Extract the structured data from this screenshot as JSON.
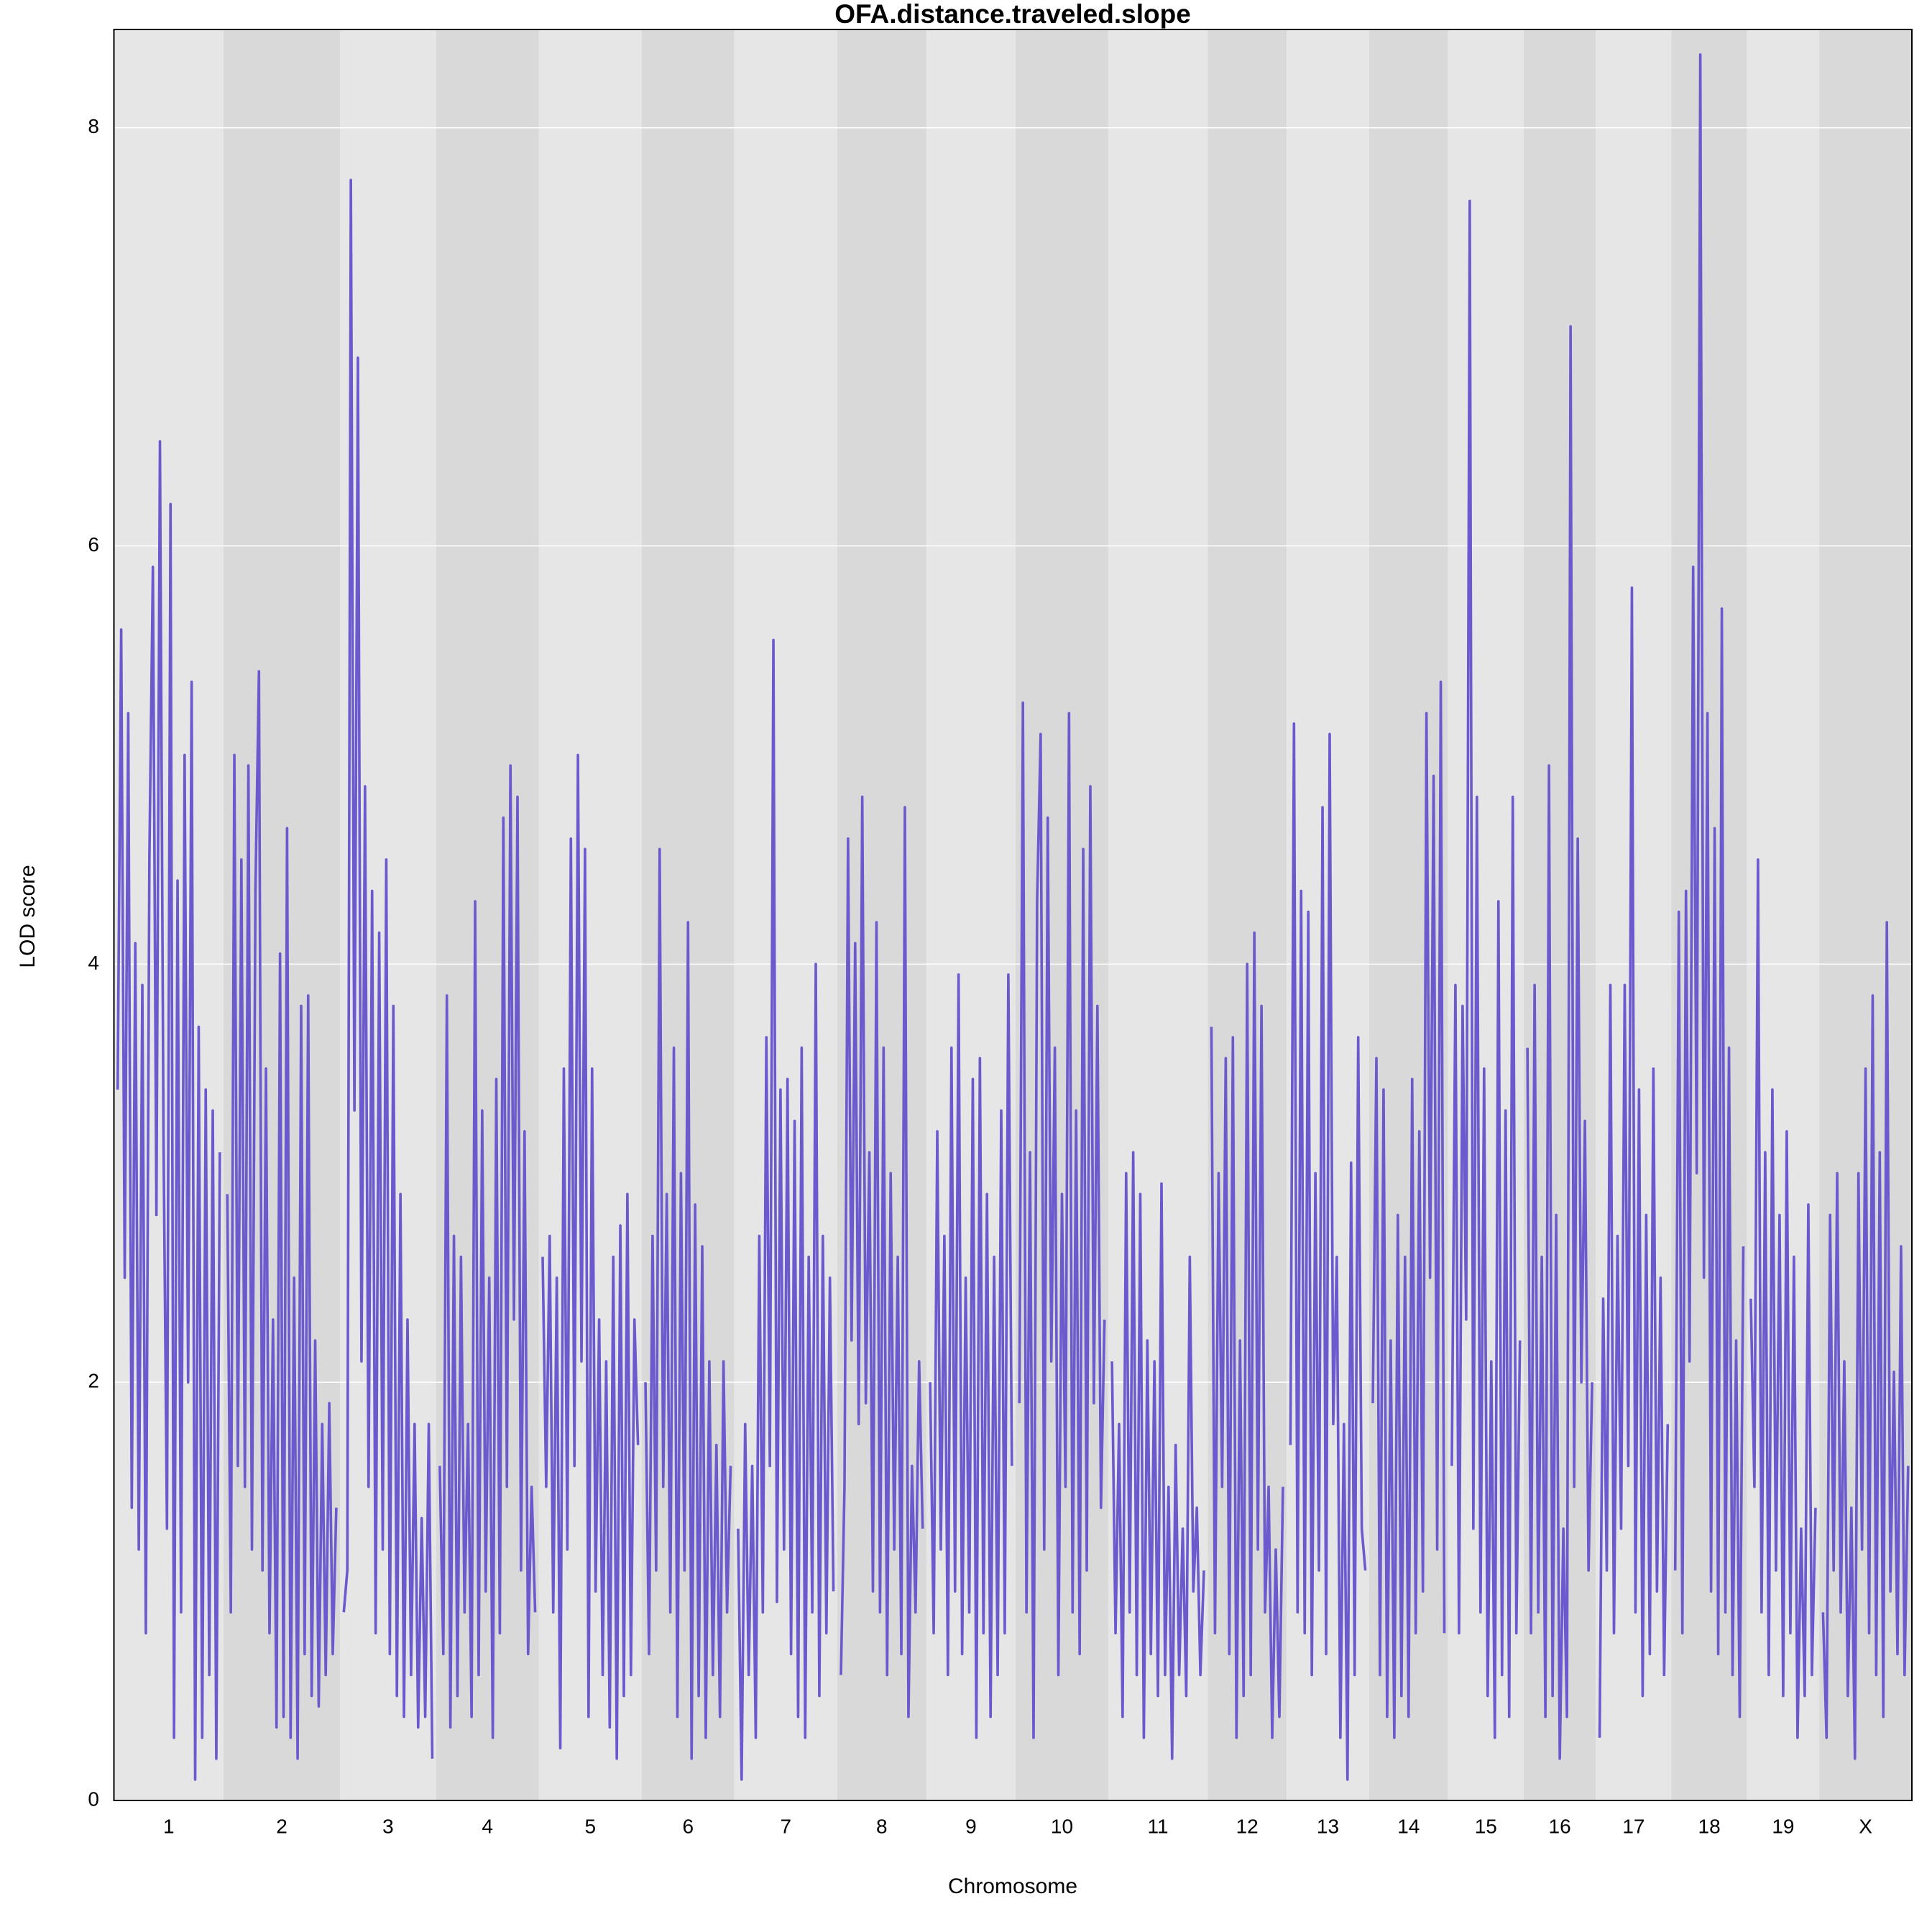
{
  "chart_data": {
    "type": "line",
    "title": "OFA.distance.traveled.slope",
    "x_label": "Chromosome",
    "y_label": "LOD score",
    "color": "#6a5acd",
    "band_colors": [
      "#e6e6e6",
      "#d9d9d9"
    ],
    "grid": true,
    "ylim": [
      0,
      8.47
    ],
    "yticks": [
      0,
      2,
      4,
      6,
      8
    ],
    "series": [
      {
        "name": "1",
        "values": [
          3.4,
          5.6,
          2.5,
          5.2,
          1.4,
          4.1,
          1.2,
          3.9,
          0.8,
          4.5,
          5.9,
          2.8,
          6.5,
          3.2,
          1.3,
          6.2,
          0.3,
          4.4,
          0.9,
          5.0,
          2.0,
          5.35,
          0.1,
          3.7,
          0.3,
          3.4,
          0.6,
          3.3,
          0.2,
          3.1
        ]
      },
      {
        "name": "2",
        "values": [
          2.9,
          0.9,
          5.0,
          1.6,
          4.5,
          1.5,
          4.95,
          1.2,
          4.35,
          5.4,
          1.1,
          3.5,
          0.8,
          2.3,
          0.35,
          4.05,
          0.4,
          4.65,
          0.3,
          2.5,
          0.2,
          3.8,
          0.7,
          3.85,
          0.5,
          2.2,
          0.45,
          1.8,
          0.6,
          1.9,
          0.7,
          1.4
        ]
      },
      {
        "name": "3",
        "values": [
          0.9,
          1.1,
          7.75,
          3.3,
          6.9,
          2.1,
          4.85,
          1.5,
          4.35,
          0.8,
          4.15,
          1.2,
          4.5,
          0.7,
          3.8,
          0.5,
          2.9,
          0.4,
          2.3,
          0.6,
          1.8,
          0.35,
          1.35,
          0.4,
          1.8,
          0.2
        ]
      },
      {
        "name": "4",
        "values": [
          1.6,
          0.7,
          3.85,
          0.35,
          2.7,
          0.5,
          2.6,
          0.9,
          1.8,
          0.4,
          4.3,
          0.6,
          3.3,
          1.0,
          2.5,
          0.3,
          3.45,
          0.8,
          4.7,
          1.5,
          4.95,
          2.3,
          4.8,
          1.1,
          3.2,
          0.7,
          1.5,
          0.9
        ]
      },
      {
        "name": "5",
        "values": [
          2.6,
          1.5,
          2.7,
          0.9,
          2.5,
          0.25,
          3.5,
          1.2,
          4.6,
          1.6,
          5.0,
          2.1,
          4.55,
          0.4,
          3.5,
          1.0,
          2.3,
          0.6,
          2.1,
          0.35,
          2.6,
          0.2,
          2.75,
          0.5,
          2.9,
          0.6,
          2.3,
          1.7
        ]
      },
      {
        "name": "6",
        "values": [
          2.0,
          0.7,
          2.7,
          1.1,
          4.55,
          1.5,
          2.9,
          0.9,
          3.6,
          0.4,
          3.0,
          1.1,
          4.2,
          0.2,
          2.85,
          0.5,
          2.65,
          0.3,
          2.1,
          0.6,
          1.7,
          0.4,
          2.1,
          0.9,
          1.6
        ]
      },
      {
        "name": "7",
        "values": [
          1.3,
          0.1,
          1.8,
          0.6,
          1.6,
          0.3,
          2.7,
          0.9,
          3.65,
          1.6,
          5.55,
          0.95,
          3.4,
          1.2,
          3.45,
          0.7,
          3.25,
          0.4,
          3.6,
          0.3,
          2.6,
          0.9,
          4.0,
          0.5,
          2.7,
          0.8,
          2.5,
          1.0
        ]
      },
      {
        "name": "8",
        "values": [
          0.6,
          1.5,
          4.6,
          2.2,
          4.1,
          1.8,
          4.8,
          1.9,
          3.1,
          1.0,
          4.2,
          0.9,
          3.6,
          0.6,
          3.0,
          1.2,
          2.6,
          0.7,
          4.75,
          0.4,
          1.6,
          0.9,
          2.1,
          1.3
        ]
      },
      {
        "name": "9",
        "values": [
          2.0,
          0.8,
          3.2,
          1.2,
          2.7,
          0.6,
          3.6,
          1.0,
          3.95,
          0.7,
          2.5,
          0.9,
          3.45,
          0.3,
          3.55,
          0.8,
          2.9,
          0.4,
          2.6,
          0.6,
          3.3,
          0.8,
          3.95,
          1.6
        ]
      },
      {
        "name": "10",
        "values": [
          1.9,
          5.25,
          0.9,
          3.1,
          0.3,
          4.3,
          5.1,
          1.2,
          4.7,
          2.1,
          3.6,
          0.6,
          2.9,
          1.5,
          5.2,
          0.9,
          3.3,
          0.7,
          4.55,
          1.1,
          4.85,
          1.9,
          3.8,
          1.4,
          2.3
        ]
      },
      {
        "name": "11",
        "values": [
          2.1,
          0.8,
          1.8,
          0.4,
          3.0,
          0.9,
          3.1,
          0.6,
          2.9,
          0.3,
          2.2,
          0.7,
          2.1,
          0.5,
          2.95,
          0.6,
          1.5,
          0.2,
          1.7,
          0.6,
          1.3,
          0.5,
          2.6,
          1.0,
          1.4,
          0.6,
          1.1
        ]
      },
      {
        "name": "12",
        "values": [
          3.7,
          0.8,
          3.0,
          1.5,
          3.55,
          0.7,
          3.65,
          0.3,
          2.2,
          0.5,
          4.0,
          0.6,
          4.15,
          1.2,
          3.8,
          0.9,
          1.5,
          0.3,
          1.2,
          0.4,
          1.5
        ]
      },
      {
        "name": "13",
        "values": [
          1.7,
          5.15,
          0.9,
          4.35,
          0.8,
          4.25,
          0.6,
          3.0,
          1.1,
          4.75,
          0.7,
          5.1,
          1.8,
          2.6,
          0.3,
          1.8,
          0.1,
          3.05,
          0.6,
          3.65,
          1.3,
          1.1
        ]
      },
      {
        "name": "14",
        "values": [
          1.9,
          3.55,
          0.6,
          3.4,
          0.4,
          2.2,
          0.3,
          2.8,
          0.5,
          2.6,
          0.4,
          3.45,
          0.8,
          3.2,
          1.0,
          5.2,
          2.5,
          4.9,
          1.2,
          5.35,
          0.8
        ]
      },
      {
        "name": "15",
        "values": [
          1.6,
          3.9,
          0.8,
          3.8,
          2.3,
          7.65,
          1.3,
          4.8,
          0.9,
          3.5,
          0.5,
          2.1,
          0.3,
          4.3,
          0.6,
          3.3,
          0.4,
          4.8,
          0.8,
          2.2
        ]
      },
      {
        "name": "16",
        "values": [
          3.6,
          0.8,
          3.9,
          0.9,
          2.6,
          0.4,
          4.95,
          0.5,
          2.8,
          0.2,
          1.3,
          0.4,
          7.05,
          1.5,
          4.6,
          2.0,
          3.25,
          1.1,
          2.0
        ]
      },
      {
        "name": "17",
        "values": [
          0.3,
          2.4,
          1.1,
          3.9,
          0.8,
          2.7,
          1.3,
          3.9,
          1.6,
          5.8,
          0.9,
          3.4,
          0.5,
          2.8,
          0.7,
          3.5,
          1.0,
          2.5,
          0.6,
          1.8
        ]
      },
      {
        "name": "18",
        "values": [
          1.1,
          4.25,
          0.8,
          4.35,
          2.1,
          5.9,
          3.0,
          8.35,
          2.5,
          5.2,
          1.0,
          4.65,
          0.7,
          5.7,
          0.9,
          3.6,
          0.6,
          2.2,
          0.4,
          2.65
        ]
      },
      {
        "name": "19",
        "values": [
          2.4,
          1.5,
          4.5,
          0.9,
          3.1,
          0.6,
          3.4,
          1.1,
          2.8,
          0.5,
          3.2,
          0.8,
          2.6,
          0.3,
          1.3,
          0.5,
          2.85,
          0.6,
          1.4
        ]
      },
      {
        "name": "X",
        "values": [
          0.9,
          0.3,
          2.8,
          1.1,
          3.0,
          0.9,
          2.1,
          0.5,
          1.4,
          0.2,
          3.0,
          1.2,
          3.5,
          0.8,
          3.85,
          0.6,
          3.1,
          0.4,
          4.2,
          1.0,
          2.05,
          0.7,
          2.65,
          0.6,
          1.6
        ]
      }
    ]
  }
}
